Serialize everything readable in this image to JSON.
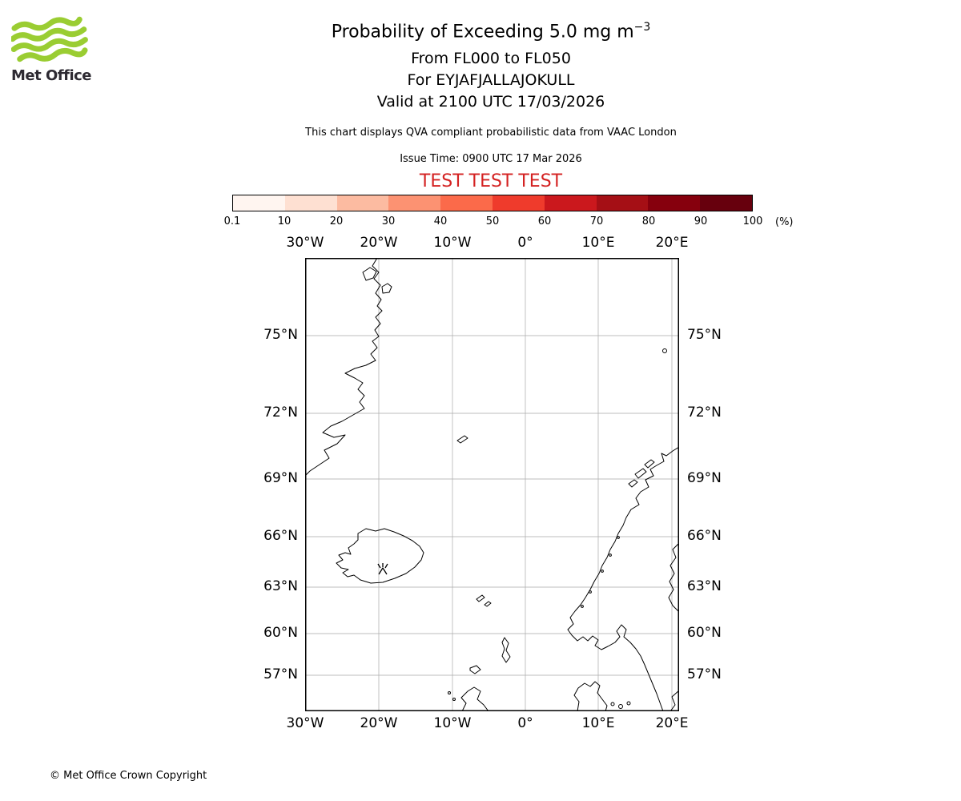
{
  "header": {
    "logo_text": "Met Office",
    "title": "Probability of Exceeding 5.0 mg m",
    "title_sup": "−3",
    "line_flight_levels": "From FL000 to FL050",
    "line_volcano": "For EYJAFJALLAJOKULL",
    "line_valid": "Valid at 2100 UTC 17/03/2026",
    "description": "This chart displays QVA compliant probabilistic data from VAAC London",
    "issue_time": "Issue Time: 0900 UTC 17 Mar 2026",
    "test_banner": "TEST TEST TEST"
  },
  "colorbar": {
    "ticks": [
      "0.1",
      "10",
      "20",
      "30",
      "40",
      "50",
      "60",
      "70",
      "80",
      "90",
      "100"
    ],
    "unit": "(%)",
    "colors": [
      "#fff5f0",
      "#fee0d2",
      "#fcbba1",
      "#fc9272",
      "#fb6a4a",
      "#ef3b2c",
      "#cb181d",
      "#a50f15",
      "#86000d",
      "#67000d"
    ]
  },
  "map": {
    "lon_labels": [
      "30°W",
      "20°W",
      "10°W",
      "0°",
      "10°E",
      "20°E"
    ],
    "lat_labels": [
      "75°N",
      "72°N",
      "69°N",
      "66°N",
      "63°N",
      "60°N",
      "57°N"
    ]
  },
  "footer": {
    "copyright": "© Met Office Crown Copyright"
  },
  "colors": {
    "test_red": "#d42222",
    "logo_green": "#9acd32",
    "logo_text_dark": "#2d2a32"
  }
}
